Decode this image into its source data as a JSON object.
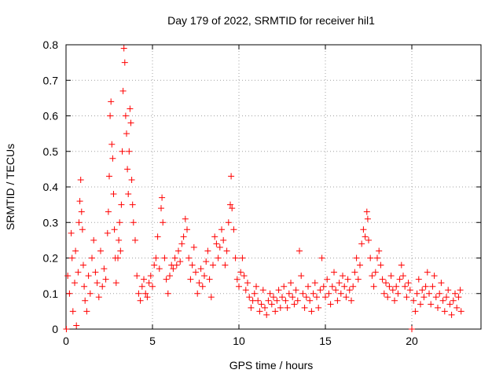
{
  "chart_data": {
    "type": "scatter",
    "title": "Day 179 of 2022, SRMTID for receiver hil1",
    "xlabel": "GPS time / hours",
    "ylabel": "SRMTID / TECUs",
    "xlim": [
      0,
      24
    ],
    "ylim": [
      0,
      0.8
    ],
    "xticks": [
      0,
      5,
      10,
      15,
      20
    ],
    "yticks": [
      0,
      0.1,
      0.2,
      0.3,
      0.4,
      0.5,
      0.6,
      0.7,
      0.8
    ],
    "xtick_labels": [
      "0",
      "5",
      "10",
      "15",
      "20"
    ],
    "ytick_labels": [
      "0",
      "0.1",
      "0.2",
      "0.3",
      "0.4",
      "0.5",
      "0.6",
      "0.7",
      "0.8"
    ],
    "grid": true,
    "marker": "+",
    "color": "#ff0000",
    "series": [
      {
        "name": "hil1",
        "points": [
          [
            0.02,
            0.0
          ],
          [
            0.1,
            0.15
          ],
          [
            0.2,
            0.1
          ],
          [
            0.3,
            0.27
          ],
          [
            0.35,
            0.2
          ],
          [
            0.4,
            0.05
          ],
          [
            0.5,
            0.13
          ],
          [
            0.55,
            0.22
          ],
          [
            0.6,
            0.01
          ],
          [
            0.7,
            0.16
          ],
          [
            0.75,
            0.3
          ],
          [
            0.8,
            0.36
          ],
          [
            0.85,
            0.42
          ],
          [
            0.9,
            0.33
          ],
          [
            0.95,
            0.28
          ],
          [
            1.0,
            0.18
          ],
          [
            1.05,
            0.12
          ],
          [
            1.1,
            0.08
          ],
          [
            1.2,
            0.05
          ],
          [
            1.3,
            0.15
          ],
          [
            1.4,
            0.1
          ],
          [
            1.5,
            0.2
          ],
          [
            1.6,
            0.25
          ],
          [
            1.7,
            0.16
          ],
          [
            1.8,
            0.13
          ],
          [
            1.9,
            0.09
          ],
          [
            2.0,
            0.22
          ],
          [
            2.1,
            0.12
          ],
          [
            2.2,
            0.17
          ],
          [
            2.3,
            0.14
          ],
          [
            2.4,
            0.27
          ],
          [
            2.45,
            0.33
          ],
          [
            2.5,
            0.43
          ],
          [
            2.55,
            0.6
          ],
          [
            2.6,
            0.64
          ],
          [
            2.65,
            0.52
          ],
          [
            2.7,
            0.48
          ],
          [
            2.75,
            0.38
          ],
          [
            2.8,
            0.28
          ],
          [
            2.85,
            0.2
          ],
          [
            2.9,
            0.13
          ],
          [
            3.0,
            0.2
          ],
          [
            3.05,
            0.25
          ],
          [
            3.1,
            0.3
          ],
          [
            3.15,
            0.22
          ],
          [
            3.2,
            0.35
          ],
          [
            3.25,
            0.5
          ],
          [
            3.3,
            0.67
          ],
          [
            3.35,
            0.79
          ],
          [
            3.4,
            0.75
          ],
          [
            3.45,
            0.6
          ],
          [
            3.5,
            0.55
          ],
          [
            3.55,
            0.45
          ],
          [
            3.6,
            0.38
          ],
          [
            3.65,
            0.5
          ],
          [
            3.7,
            0.62
          ],
          [
            3.75,
            0.58
          ],
          [
            3.8,
            0.42
          ],
          [
            3.85,
            0.35
          ],
          [
            3.9,
            0.3
          ],
          [
            4.0,
            0.25
          ],
          [
            4.1,
            0.15
          ],
          [
            4.2,
            0.1
          ],
          [
            4.3,
            0.08
          ],
          [
            4.4,
            0.12
          ],
          [
            4.5,
            0.14
          ],
          [
            4.6,
            0.1
          ],
          [
            4.7,
            0.09
          ],
          [
            4.8,
            0.13
          ],
          [
            4.9,
            0.15
          ],
          [
            5.0,
            0.12
          ],
          [
            5.1,
            0.18
          ],
          [
            5.2,
            0.2
          ],
          [
            5.3,
            0.26
          ],
          [
            5.4,
            0.17
          ],
          [
            5.5,
            0.34
          ],
          [
            5.55,
            0.37
          ],
          [
            5.6,
            0.3
          ],
          [
            5.7,
            0.2
          ],
          [
            5.8,
            0.14
          ],
          [
            5.9,
            0.1
          ],
          [
            6.0,
            0.15
          ],
          [
            6.1,
            0.18
          ],
          [
            6.2,
            0.17
          ],
          [
            6.3,
            0.2
          ],
          [
            6.4,
            0.18
          ],
          [
            6.5,
            0.22
          ],
          [
            6.6,
            0.19
          ],
          [
            6.7,
            0.24
          ],
          [
            6.8,
            0.26
          ],
          [
            6.9,
            0.31
          ],
          [
            7.0,
            0.28
          ],
          [
            7.1,
            0.2
          ],
          [
            7.2,
            0.14
          ],
          [
            7.3,
            0.18
          ],
          [
            7.4,
            0.23
          ],
          [
            7.5,
            0.16
          ],
          [
            7.6,
            0.1
          ],
          [
            7.7,
            0.13
          ],
          [
            7.8,
            0.17
          ],
          [
            7.9,
            0.12
          ],
          [
            8.0,
            0.15
          ],
          [
            8.1,
            0.19
          ],
          [
            8.2,
            0.22
          ],
          [
            8.3,
            0.14
          ],
          [
            8.4,
            0.09
          ],
          [
            8.5,
            0.18
          ],
          [
            8.6,
            0.26
          ],
          [
            8.7,
            0.24
          ],
          [
            8.8,
            0.2
          ],
          [
            8.9,
            0.23
          ],
          [
            9.0,
            0.28
          ],
          [
            9.1,
            0.25
          ],
          [
            9.2,
            0.18
          ],
          [
            9.3,
            0.22
          ],
          [
            9.4,
            0.3
          ],
          [
            9.5,
            0.35
          ],
          [
            9.55,
            0.43
          ],
          [
            9.6,
            0.34
          ],
          [
            9.7,
            0.28
          ],
          [
            9.8,
            0.2
          ],
          [
            9.9,
            0.14
          ],
          [
            10.0,
            0.12
          ],
          [
            10.1,
            0.16
          ],
          [
            10.2,
            0.2
          ],
          [
            10.3,
            0.15
          ],
          [
            10.4,
            0.11
          ],
          [
            10.5,
            0.13
          ],
          [
            10.6,
            0.09
          ],
          [
            10.7,
            0.06
          ],
          [
            10.8,
            0.08
          ],
          [
            10.9,
            0.1
          ],
          [
            11.0,
            0.12
          ],
          [
            11.1,
            0.08
          ],
          [
            11.2,
            0.05
          ],
          [
            11.3,
            0.07
          ],
          [
            11.4,
            0.11
          ],
          [
            11.5,
            0.06
          ],
          [
            11.6,
            0.04
          ],
          [
            11.7,
            0.08
          ],
          [
            11.8,
            0.1
          ],
          [
            11.9,
            0.07
          ],
          [
            12.0,
            0.09
          ],
          [
            12.1,
            0.05
          ],
          [
            12.2,
            0.08
          ],
          [
            12.3,
            0.11
          ],
          [
            12.4,
            0.06
          ],
          [
            12.5,
            0.09
          ],
          [
            12.6,
            0.12
          ],
          [
            12.7,
            0.08
          ],
          [
            12.8,
            0.06
          ],
          [
            12.9,
            0.1
          ],
          [
            13.0,
            0.13
          ],
          [
            13.1,
            0.09
          ],
          [
            13.2,
            0.07
          ],
          [
            13.3,
            0.11
          ],
          [
            13.4,
            0.08
          ],
          [
            13.5,
            0.22
          ],
          [
            13.6,
            0.15
          ],
          [
            13.7,
            0.1
          ],
          [
            13.8,
            0.06
          ],
          [
            13.9,
            0.09
          ],
          [
            14.0,
            0.12
          ],
          [
            14.1,
            0.08
          ],
          [
            14.2,
            0.05
          ],
          [
            14.3,
            0.1
          ],
          [
            14.4,
            0.13
          ],
          [
            14.5,
            0.09
          ],
          [
            14.6,
            0.06
          ],
          [
            14.7,
            0.11
          ],
          [
            14.8,
            0.2
          ],
          [
            14.9,
            0.12
          ],
          [
            15.0,
            0.09
          ],
          [
            15.1,
            0.14
          ],
          [
            15.2,
            0.1
          ],
          [
            15.3,
            0.07
          ],
          [
            15.4,
            0.12
          ],
          [
            15.5,
            0.16
          ],
          [
            15.6,
            0.11
          ],
          [
            15.7,
            0.08
          ],
          [
            15.8,
            0.13
          ],
          [
            15.9,
            0.1
          ],
          [
            16.0,
            0.15
          ],
          [
            16.1,
            0.12
          ],
          [
            16.2,
            0.09
          ],
          [
            16.3,
            0.14
          ],
          [
            16.4,
            0.11
          ],
          [
            16.5,
            0.08
          ],
          [
            16.6,
            0.12
          ],
          [
            16.7,
            0.16
          ],
          [
            16.8,
            0.2
          ],
          [
            16.9,
            0.14
          ],
          [
            17.0,
            0.18
          ],
          [
            17.1,
            0.24
          ],
          [
            17.2,
            0.28
          ],
          [
            17.3,
            0.26
          ],
          [
            17.4,
            0.33
          ],
          [
            17.45,
            0.31
          ],
          [
            17.5,
            0.25
          ],
          [
            17.6,
            0.2
          ],
          [
            17.7,
            0.15
          ],
          [
            17.8,
            0.12
          ],
          [
            17.9,
            0.16
          ],
          [
            18.0,
            0.2
          ],
          [
            18.1,
            0.22
          ],
          [
            18.2,
            0.18
          ],
          [
            18.3,
            0.14
          ],
          [
            18.4,
            0.1
          ],
          [
            18.5,
            0.13
          ],
          [
            18.6,
            0.09
          ],
          [
            18.7,
            0.12
          ],
          [
            18.8,
            0.15
          ],
          [
            18.9,
            0.11
          ],
          [
            19.0,
            0.08
          ],
          [
            19.1,
            0.12
          ],
          [
            19.2,
            0.1
          ],
          [
            19.3,
            0.14
          ],
          [
            19.4,
            0.18
          ],
          [
            19.5,
            0.15
          ],
          [
            19.6,
            0.12
          ],
          [
            19.7,
            0.09
          ],
          [
            19.8,
            0.13
          ],
          [
            19.9,
            0.11
          ],
          [
            20.0,
            0.0
          ],
          [
            20.1,
            0.08
          ],
          [
            20.2,
            0.05
          ],
          [
            20.3,
            0.1
          ],
          [
            20.4,
            0.14
          ],
          [
            20.5,
            0.07
          ],
          [
            20.6,
            0.11
          ],
          [
            20.7,
            0.09
          ],
          [
            20.8,
            0.12
          ],
          [
            20.9,
            0.16
          ],
          [
            21.0,
            0.1
          ],
          [
            21.1,
            0.07
          ],
          [
            21.2,
            0.12
          ],
          [
            21.3,
            0.15
          ],
          [
            21.4,
            0.09
          ],
          [
            21.5,
            0.06
          ],
          [
            21.6,
            0.1
          ],
          [
            21.7,
            0.13
          ],
          [
            21.8,
            0.08
          ],
          [
            21.9,
            0.05
          ],
          [
            22.0,
            0.09
          ],
          [
            22.1,
            0.11
          ],
          [
            22.2,
            0.07
          ],
          [
            22.3,
            0.04
          ],
          [
            22.4,
            0.08
          ],
          [
            22.5,
            0.1
          ],
          [
            22.6,
            0.06
          ],
          [
            22.7,
            0.09
          ],
          [
            22.8,
            0.11
          ],
          [
            22.85,
            0.05
          ]
        ]
      }
    ]
  }
}
